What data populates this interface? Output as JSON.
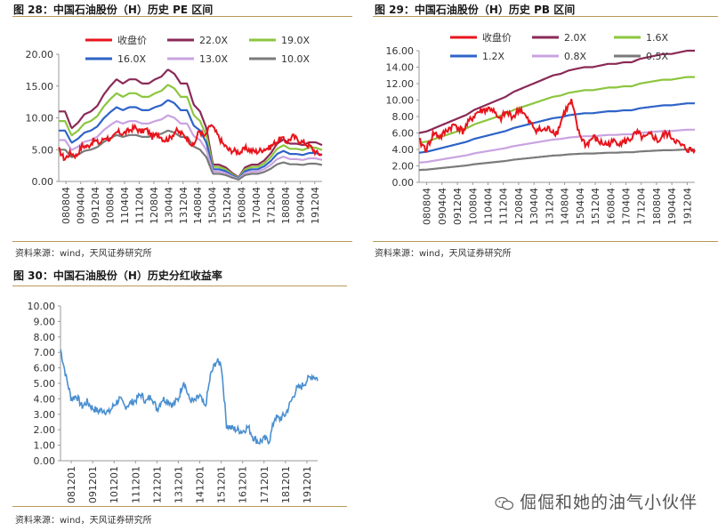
{
  "chart_data": [
    {
      "id": "pe",
      "type": "line",
      "title": "图 28：中国石油股份（H）历史 PE 区间",
      "source": "资料来源：wind，天风证券研究所",
      "yticks": [
        "20.00",
        "15.00",
        "10.00",
        "5.00",
        "0.00"
      ],
      "ylim": [
        0,
        20
      ],
      "xticks": [
        "080804",
        "090404",
        "091204",
        "100804",
        "110404",
        "111204",
        "120804",
        "130404",
        "131204",
        "140804",
        "150404",
        "151204",
        "160804",
        "170404",
        "171204",
        "180804",
        "190404",
        "191204"
      ],
      "legend": [
        "收盘价",
        "22.0X",
        "19.0X",
        "16.0X",
        "13.0X",
        "10.0X"
      ],
      "series_colors": [
        "#e8141c",
        "#8a2a57",
        "#8cc63e",
        "#2f63c7",
        "#c9a3e0",
        "#7a7a7a"
      ],
      "price": [
        5.0,
        3.5,
        4.5,
        4.0,
        5.6,
        5.5,
        6.5,
        6.0,
        7.0,
        6.5,
        7.8,
        7.5,
        8.0,
        8.5,
        7.8,
        8.2,
        7.0,
        7.5,
        6.5,
        6.8,
        8.0,
        7.5,
        6.8,
        5.5,
        8.0,
        7.0,
        9.0,
        7.5,
        6.0,
        5.0,
        4.8,
        4.6,
        5.2,
        4.8,
        4.7,
        5.1,
        5.3,
        6.1,
        6.8,
        6.2,
        7.1,
        6.5,
        6.0,
        5.5,
        4.5,
        4.2
      ],
      "eps": [
        0.5,
        0.5,
        0.38,
        0.42,
        0.48,
        0.5,
        0.54,
        0.62,
        0.68,
        0.73,
        0.7,
        0.73,
        0.73,
        0.7,
        0.7,
        0.73,
        0.75,
        0.8,
        0.77,
        0.7,
        0.7,
        0.55,
        0.5,
        0.38,
        0.12,
        0.12,
        0.1,
        0.06,
        0.03,
        0.1,
        0.12,
        0.12,
        0.15,
        0.2,
        0.27,
        0.3,
        0.27,
        0.27,
        0.26,
        0.28,
        0.28,
        0.26
      ],
      "multiples": [
        22,
        19,
        16,
        13,
        10
      ]
    },
    {
      "id": "pb",
      "type": "line",
      "title": "图 29：中国石油股份（H）历史 PB 区间",
      "source": "资料来源：wind，天风证券研究所",
      "yticks": [
        "16.00",
        "14.00",
        "12.00",
        "10.00",
        "8.00",
        "6.00",
        "4.00",
        "2.00",
        "0.00"
      ],
      "ylim": [
        0,
        16
      ],
      "xticks": [
        "080804",
        "090404",
        "091204",
        "100804",
        "110404",
        "111204",
        "120804",
        "130404",
        "131204",
        "140804",
        "150404",
        "151204",
        "160804",
        "170404",
        "171204",
        "180804",
        "190404",
        "191204"
      ],
      "legend": [
        "收盘价",
        "2.0X",
        "1.6X",
        "1.2X",
        "0.8X",
        "0.5X"
      ],
      "series_colors": [
        "#e8141c",
        "#8a2a57",
        "#8cc63e",
        "#2f63c7",
        "#c9a3e0",
        "#7a7a7a"
      ],
      "price": [
        5.0,
        4.0,
        6.0,
        5.5,
        6.5,
        7.0,
        6.2,
        7.5,
        8.5,
        8.8,
        9.0,
        7.5,
        8.5,
        8.0,
        9.0,
        7.5,
        6.5,
        6.3,
        6.5,
        6.0,
        8.5,
        9.8,
        6.0,
        4.5,
        5.5,
        4.8,
        4.6,
        5.0,
        4.8,
        5.2,
        6.0,
        5.3,
        5.8,
        5.0,
        6.0,
        5.4,
        4.5,
        4.0,
        3.8
      ],
      "bvps": [
        3.0,
        3.1,
        3.3,
        3.5,
        3.7,
        3.9,
        4.1,
        4.4,
        4.6,
        4.8,
        5.0,
        5.2,
        5.5,
        5.7,
        5.9,
        6.1,
        6.3,
        6.5,
        6.6,
        6.8,
        6.9,
        7.0,
        7.0,
        7.1,
        7.2,
        7.2,
        7.3,
        7.3,
        7.5,
        7.6,
        7.7,
        7.8,
        7.8,
        7.9,
        8.0,
        8.0
      ],
      "multiples": [
        2.0,
        1.6,
        1.2,
        0.8,
        0.5
      ]
    },
    {
      "id": "dy",
      "type": "line",
      "title": "图 30：中国石油股份（H）历史分红收益率",
      "source": "资料来源：wind，天风证券研究所",
      "yticks": [
        "10.00",
        "9.00",
        "8.00",
        "7.00",
        "6.00",
        "5.00",
        "4.00",
        "3.00",
        "2.00",
        "1.00",
        "0.00"
      ],
      "ylim": [
        0,
        10
      ],
      "xticks": [
        "081201",
        "091201",
        "101201",
        "111201",
        "121201",
        "131201",
        "141201",
        "151201",
        "161201",
        "171201",
        "181201",
        "191201"
      ],
      "series_colors": [
        "#4a8fd0"
      ],
      "values": [
        7.2,
        5.5,
        4.0,
        4.2,
        3.5,
        3.8,
        3.4,
        3.2,
        3.3,
        3.1,
        3.6,
        4.0,
        3.5,
        3.7,
        3.9,
        4.3,
        3.8,
        4.2,
        3.3,
        4.0,
        3.9,
        3.6,
        4.0,
        5.2,
        4.0,
        3.8,
        4.2,
        3.4,
        5.5,
        6.4,
        6.3,
        2.3,
        2.1,
        2.0,
        1.9,
        2.2,
        1.5,
        1.2,
        1.4,
        1.3,
        2.8,
        2.7,
        3.0,
        3.8,
        4.6,
        4.8,
        5.2,
        5.5,
        5.3
      ]
    }
  ],
  "watermark": {
    "text": "倔倔和她的油气小伙伴",
    "icon": "wechat-icon"
  }
}
